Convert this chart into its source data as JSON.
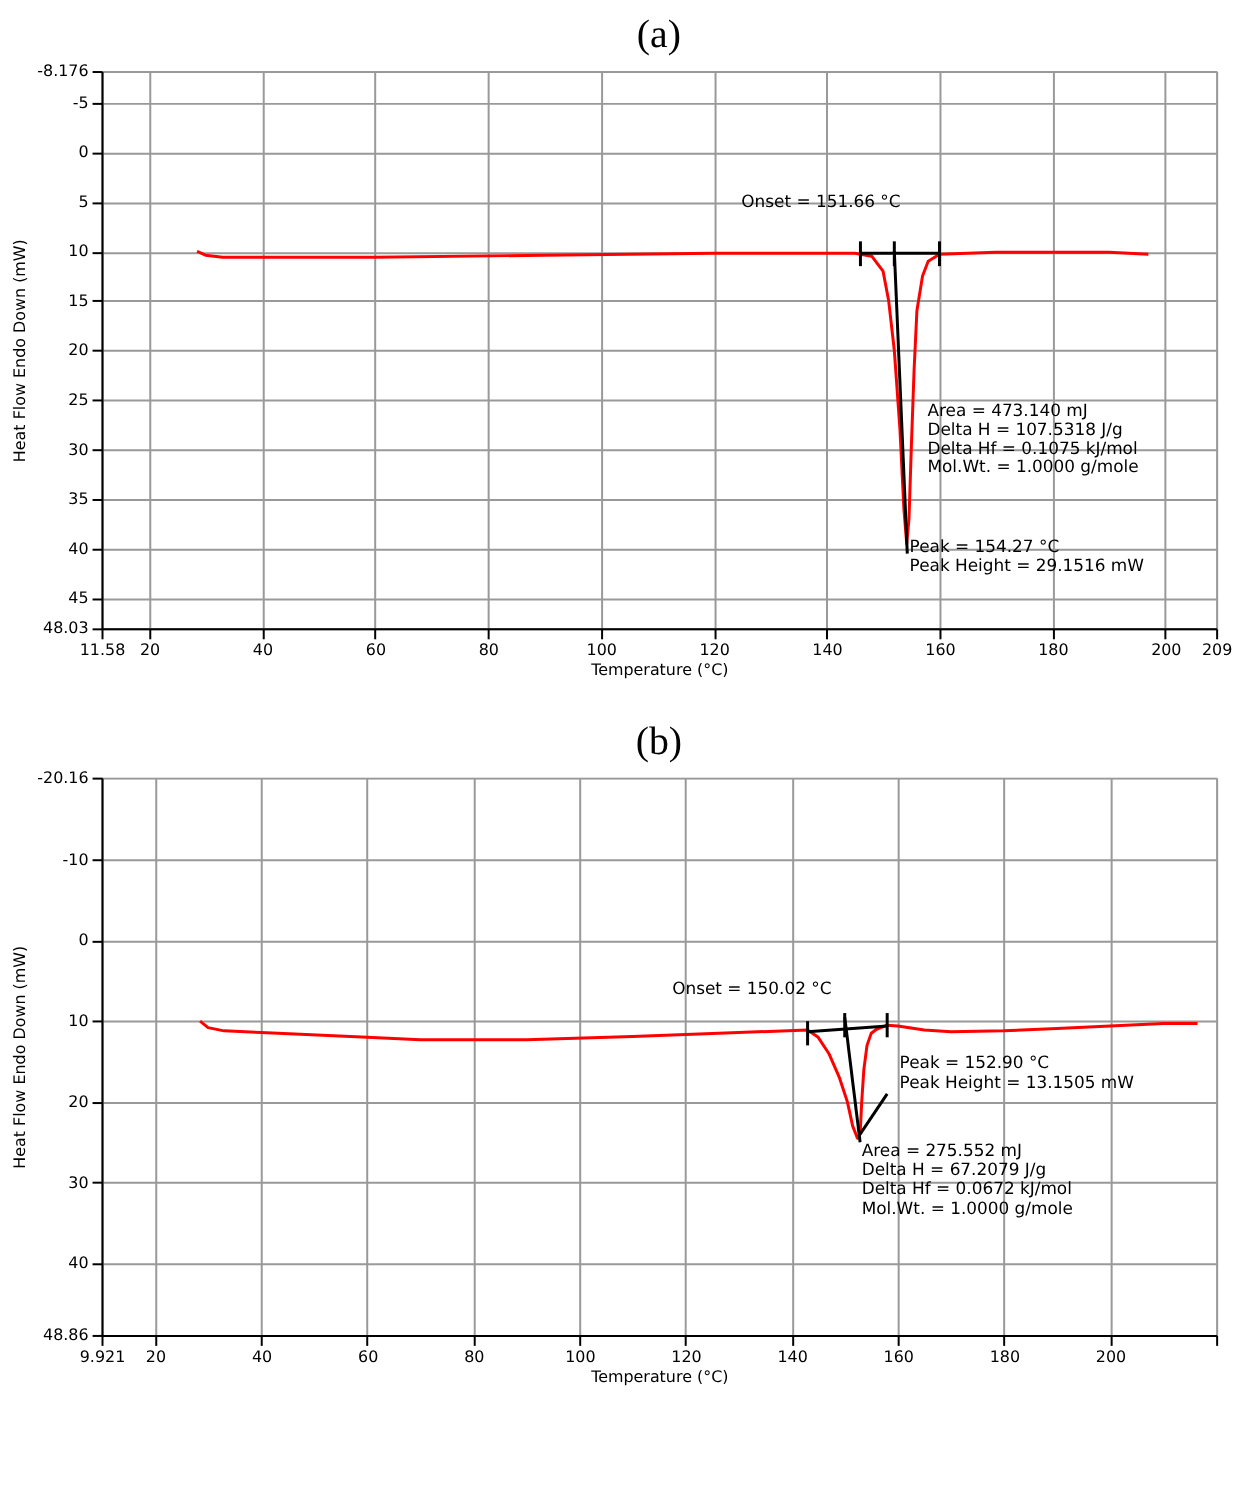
{
  "chart_data": [
    {
      "type": "line",
      "title": "(a)",
      "xlabel": "Temperature (°C)",
      "ylabel": "Heat Flow Endo Down (mW)",
      "xlim": [
        11.58,
        209
      ],
      "xticks": [
        11.58,
        20,
        40,
        60,
        80,
        100,
        120,
        140,
        160,
        180,
        200,
        209
      ],
      "ylim": [
        48.03,
        -8.176
      ],
      "yticks": [
        -8.176,
        -5,
        0,
        5,
        10,
        15,
        20,
        25,
        30,
        35,
        40,
        45,
        48.03
      ],
      "grid": true,
      "line_style": "solid",
      "series": [
        {
          "color": "#ff0000",
          "x": [
            28.5,
            30,
            33,
            60,
            90,
            120,
            145,
            148,
            150,
            151,
            152,
            153,
            153.7,
            154.2,
            154.6,
            155,
            155.5,
            156,
            157,
            158,
            160,
            170,
            190,
            197
          ],
          "values": [
            10.0,
            10.4,
            10.6,
            10.6,
            10.4,
            10.2,
            10.2,
            10.5,
            12,
            15,
            20,
            28,
            36,
            39.5,
            37,
            30,
            22,
            16,
            12.5,
            11,
            10.3,
            10.1,
            10.1,
            10.3
          ]
        },
        {
          "color": "#000000",
          "x": [
            146,
            160
          ],
          "values": [
            10.2,
            10.2
          ]
        },
        {
          "color": "#000000",
          "x": [
            152,
            154.3
          ],
          "values": [
            10,
            40.5
          ]
        },
        {
          "color": "#000000",
          "x": [
            146,
            146
          ],
          "values": [
            9,
            11.5
          ]
        },
        {
          "color": "#000000",
          "x": [
            152,
            152
          ],
          "values": [
            9,
            11.5
          ]
        },
        {
          "color": "#000000",
          "x": [
            160,
            160
          ],
          "values": [
            9,
            11.5
          ]
        }
      ],
      "annotations": [
        "Onset = 151.66 °C",
        "Area = 473.140 mJ",
        "Delta H = 107.5318 J/g",
        "Delta Hf = 0.1075 kJ/mol",
        "Mol.Wt. = 1.0000 g/mole",
        "Peak = 154.27 °C",
        "Peak Height = 29.1516 mW"
      ]
    },
    {
      "type": "line",
      "title": "(b)",
      "xlabel": "Temperature (°C)",
      "ylabel": "Heat Flow Endo Down (mW)",
      "xlim": [
        9.921,
        220
      ],
      "xticks": [
        9.921,
        20,
        40,
        60,
        80,
        100,
        120,
        140,
        160,
        180,
        200,
        {
          "value": 220,
          "label": null
        }
      ],
      "ylim": [
        48.86,
        -20.16
      ],
      "yticks": [
        -20.16,
        -10,
        0,
        10,
        20,
        30,
        40,
        48.86
      ],
      "grid": true,
      "line_style": "solid",
      "series": [
        {
          "color": "#ff0000",
          "x": [
            28.5,
            30,
            33,
            40,
            60,
            70,
            90,
            110,
            130,
            143,
            145,
            147,
            149,
            150.5,
            151.5,
            152.4,
            152.9,
            153.2,
            153.6,
            154.2,
            155,
            156,
            158,
            160,
            165,
            170,
            180,
            190,
            200,
            210,
            216.5
          ],
          "values": [
            10,
            10.8,
            11.2,
            11.4,
            12.0,
            12.3,
            12.3,
            11.9,
            11.4,
            11.1,
            12,
            14,
            17,
            20,
            23,
            24.5,
            24,
            20,
            16,
            13,
            11.5,
            11,
            10.5,
            10.6,
            11.1,
            11.3,
            11.2,
            10.9,
            10.6,
            10.3,
            10.3
          ]
        },
        {
          "color": "#000000",
          "x": [
            143,
            158
          ],
          "values": [
            11.3,
            10.6
          ]
        },
        {
          "color": "#000000",
          "x": [
            150,
            152.9
          ],
          "values": [
            9.5,
            25
          ]
        },
        {
          "color": "#000000",
          "x": [
            152.9,
            158
          ],
          "values": [
            24,
            19
          ]
        },
        {
          "color": "#000000",
          "x": [
            143,
            143
          ],
          "values": [
            10,
            13
          ]
        },
        {
          "color": "#000000",
          "x": [
            150,
            150
          ],
          "values": [
            9,
            12
          ]
        },
        {
          "color": "#000000",
          "x": [
            158,
            158
          ],
          "values": [
            9,
            12
          ]
        }
      ],
      "annotations": [
        "Onset = 150.02 °C",
        "Peak = 152.90 °C",
        "Peak Height = 13.1505 mW",
        "Area = 275.552 mJ",
        "Delta H = 67.2079 J/g",
        "Delta Hf = 0.0672 kJ/mol",
        "Mol.Wt. = 1.0000 g/mole"
      ]
    }
  ]
}
